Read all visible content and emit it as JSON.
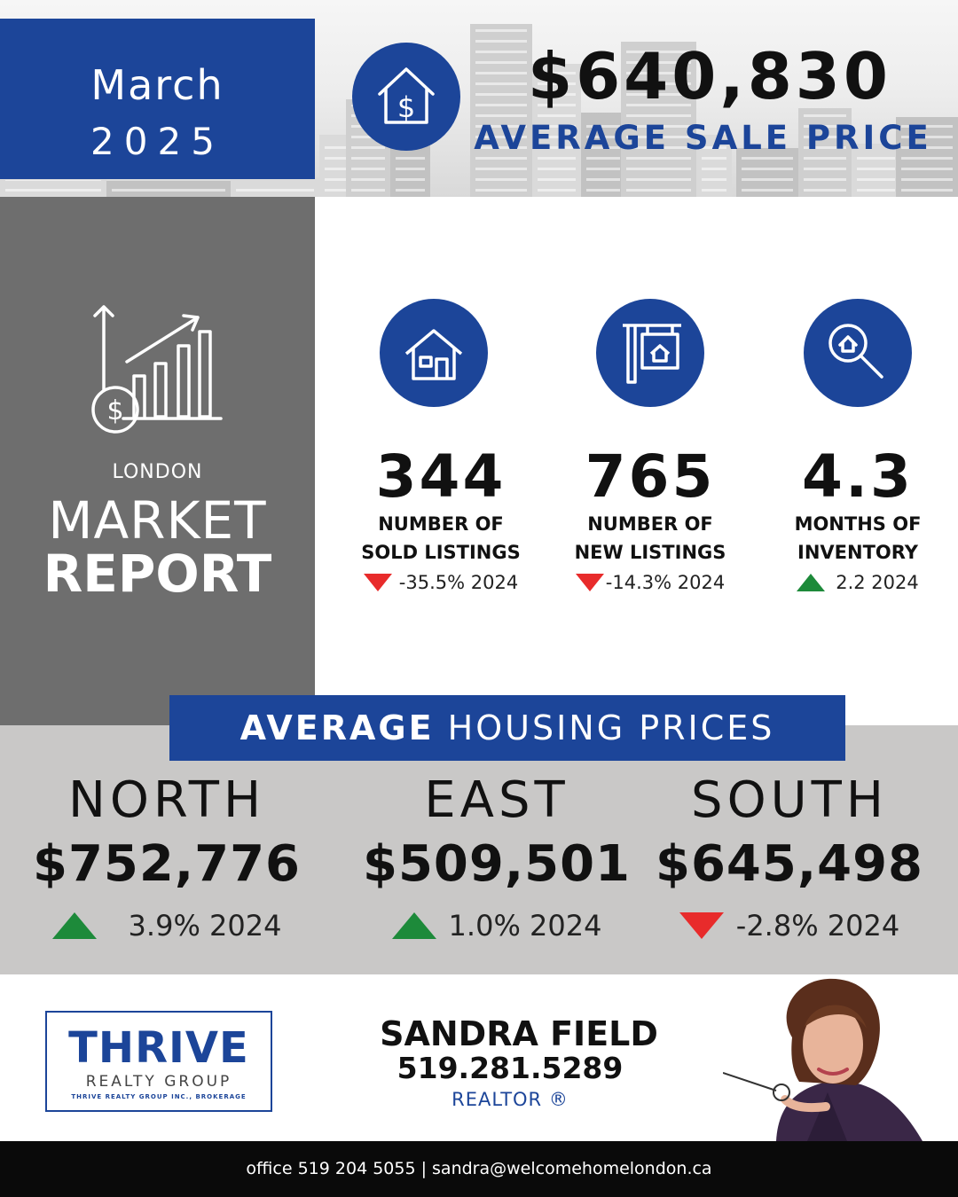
{
  "header": {
    "month": "March",
    "year": "2025",
    "average_sale_price": "$640,830",
    "average_sale_price_label": "AVERAGE SALE PRICE"
  },
  "market_report": {
    "city": "LONDON",
    "title_line1": "MARKET",
    "title_line2": "REPORT"
  },
  "stats": [
    {
      "icon": "house-icon",
      "value": "344",
      "label_line1": "NUMBER OF",
      "label_line2": "SOLD LISTINGS",
      "trend": "down",
      "change": "-35.5% 2024"
    },
    {
      "icon": "for-sale-sign-icon",
      "value": "765",
      "label_line1": "NUMBER OF",
      "label_line2": "NEW LISTINGS",
      "trend": "down",
      "change": "-14.3% 2024"
    },
    {
      "icon": "magnifier-house-icon",
      "value": "4.3",
      "label_line1": "MONTHS OF",
      "label_line2": "INVENTORY",
      "trend": "up",
      "change": "2.2 2024"
    }
  ],
  "housing_prices": {
    "title_bold": "AVERAGE",
    "title_rest": " HOUSING PRICES",
    "regions": [
      {
        "name": "NORTH",
        "price": "$752,776",
        "trend": "up",
        "change": "3.9% 2024"
      },
      {
        "name": "EAST",
        "price": "$509,501",
        "trend": "up",
        "change": "1.0% 2024"
      },
      {
        "name": "SOUTH",
        "price": "$645,498",
        "trend": "down",
        "change": "-2.8% 2024"
      }
    ]
  },
  "brokerage": {
    "name": "THRIVE",
    "subtitle": "REALTY GROUP",
    "legal": "THRIVE REALTY GROUP INC., BROKERAGE"
  },
  "agent": {
    "name": "SANDRA FIELD",
    "phone": "519.281.5289",
    "title": "REALTOR ®"
  },
  "footer": {
    "contact": "office 519 204 5055 | sandra@welcomehomelondon.ca"
  },
  "colors": {
    "brand_blue": "#1c4599",
    "panel_gray": "#6e6e6e",
    "band_gray": "#c9c8c7",
    "up_green": "#1d8a3a",
    "down_red": "#e82b2b"
  }
}
